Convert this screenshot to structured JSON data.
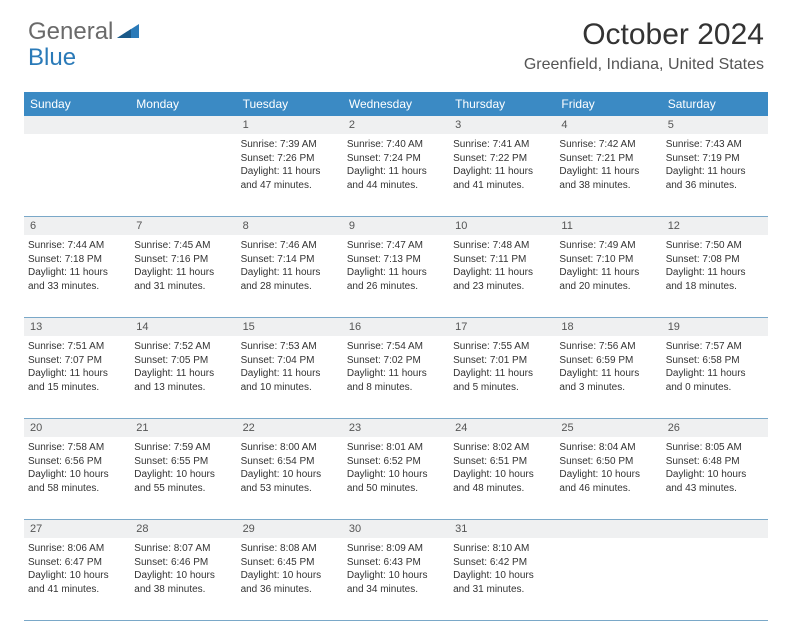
{
  "logo": {
    "word1": "General",
    "word2": "Blue"
  },
  "header": {
    "month_title": "October 2024",
    "location": "Greenfield, Indiana, United States"
  },
  "colors": {
    "header_bg": "#3b8ac4",
    "daynum_bg": "#eff0f1",
    "week_border": "#7aa8c8",
    "logo_gray": "#6a6a6a",
    "logo_blue": "#2a7ab8"
  },
  "day_names": [
    "Sunday",
    "Monday",
    "Tuesday",
    "Wednesday",
    "Thursday",
    "Friday",
    "Saturday"
  ],
  "weeks": [
    {
      "nums": [
        "",
        "",
        "1",
        "2",
        "3",
        "4",
        "5"
      ],
      "cells": [
        {
          "sunrise": "",
          "sunset": "",
          "daylight": ""
        },
        {
          "sunrise": "",
          "sunset": "",
          "daylight": ""
        },
        {
          "sunrise": "Sunrise: 7:39 AM",
          "sunset": "Sunset: 7:26 PM",
          "daylight": "Daylight: 11 hours and 47 minutes."
        },
        {
          "sunrise": "Sunrise: 7:40 AM",
          "sunset": "Sunset: 7:24 PM",
          "daylight": "Daylight: 11 hours and 44 minutes."
        },
        {
          "sunrise": "Sunrise: 7:41 AM",
          "sunset": "Sunset: 7:22 PM",
          "daylight": "Daylight: 11 hours and 41 minutes."
        },
        {
          "sunrise": "Sunrise: 7:42 AM",
          "sunset": "Sunset: 7:21 PM",
          "daylight": "Daylight: 11 hours and 38 minutes."
        },
        {
          "sunrise": "Sunrise: 7:43 AM",
          "sunset": "Sunset: 7:19 PM",
          "daylight": "Daylight: 11 hours and 36 minutes."
        }
      ]
    },
    {
      "nums": [
        "6",
        "7",
        "8",
        "9",
        "10",
        "11",
        "12"
      ],
      "cells": [
        {
          "sunrise": "Sunrise: 7:44 AM",
          "sunset": "Sunset: 7:18 PM",
          "daylight": "Daylight: 11 hours and 33 minutes."
        },
        {
          "sunrise": "Sunrise: 7:45 AM",
          "sunset": "Sunset: 7:16 PM",
          "daylight": "Daylight: 11 hours and 31 minutes."
        },
        {
          "sunrise": "Sunrise: 7:46 AM",
          "sunset": "Sunset: 7:14 PM",
          "daylight": "Daylight: 11 hours and 28 minutes."
        },
        {
          "sunrise": "Sunrise: 7:47 AM",
          "sunset": "Sunset: 7:13 PM",
          "daylight": "Daylight: 11 hours and 26 minutes."
        },
        {
          "sunrise": "Sunrise: 7:48 AM",
          "sunset": "Sunset: 7:11 PM",
          "daylight": "Daylight: 11 hours and 23 minutes."
        },
        {
          "sunrise": "Sunrise: 7:49 AM",
          "sunset": "Sunset: 7:10 PM",
          "daylight": "Daylight: 11 hours and 20 minutes."
        },
        {
          "sunrise": "Sunrise: 7:50 AM",
          "sunset": "Sunset: 7:08 PM",
          "daylight": "Daylight: 11 hours and 18 minutes."
        }
      ]
    },
    {
      "nums": [
        "13",
        "14",
        "15",
        "16",
        "17",
        "18",
        "19"
      ],
      "cells": [
        {
          "sunrise": "Sunrise: 7:51 AM",
          "sunset": "Sunset: 7:07 PM",
          "daylight": "Daylight: 11 hours and 15 minutes."
        },
        {
          "sunrise": "Sunrise: 7:52 AM",
          "sunset": "Sunset: 7:05 PM",
          "daylight": "Daylight: 11 hours and 13 minutes."
        },
        {
          "sunrise": "Sunrise: 7:53 AM",
          "sunset": "Sunset: 7:04 PM",
          "daylight": "Daylight: 11 hours and 10 minutes."
        },
        {
          "sunrise": "Sunrise: 7:54 AM",
          "sunset": "Sunset: 7:02 PM",
          "daylight": "Daylight: 11 hours and 8 minutes."
        },
        {
          "sunrise": "Sunrise: 7:55 AM",
          "sunset": "Sunset: 7:01 PM",
          "daylight": "Daylight: 11 hours and 5 minutes."
        },
        {
          "sunrise": "Sunrise: 7:56 AM",
          "sunset": "Sunset: 6:59 PM",
          "daylight": "Daylight: 11 hours and 3 minutes."
        },
        {
          "sunrise": "Sunrise: 7:57 AM",
          "sunset": "Sunset: 6:58 PM",
          "daylight": "Daylight: 11 hours and 0 minutes."
        }
      ]
    },
    {
      "nums": [
        "20",
        "21",
        "22",
        "23",
        "24",
        "25",
        "26"
      ],
      "cells": [
        {
          "sunrise": "Sunrise: 7:58 AM",
          "sunset": "Sunset: 6:56 PM",
          "daylight": "Daylight: 10 hours and 58 minutes."
        },
        {
          "sunrise": "Sunrise: 7:59 AM",
          "sunset": "Sunset: 6:55 PM",
          "daylight": "Daylight: 10 hours and 55 minutes."
        },
        {
          "sunrise": "Sunrise: 8:00 AM",
          "sunset": "Sunset: 6:54 PM",
          "daylight": "Daylight: 10 hours and 53 minutes."
        },
        {
          "sunrise": "Sunrise: 8:01 AM",
          "sunset": "Sunset: 6:52 PM",
          "daylight": "Daylight: 10 hours and 50 minutes."
        },
        {
          "sunrise": "Sunrise: 8:02 AM",
          "sunset": "Sunset: 6:51 PM",
          "daylight": "Daylight: 10 hours and 48 minutes."
        },
        {
          "sunrise": "Sunrise: 8:04 AM",
          "sunset": "Sunset: 6:50 PM",
          "daylight": "Daylight: 10 hours and 46 minutes."
        },
        {
          "sunrise": "Sunrise: 8:05 AM",
          "sunset": "Sunset: 6:48 PM",
          "daylight": "Daylight: 10 hours and 43 minutes."
        }
      ]
    },
    {
      "nums": [
        "27",
        "28",
        "29",
        "30",
        "31",
        "",
        ""
      ],
      "cells": [
        {
          "sunrise": "Sunrise: 8:06 AM",
          "sunset": "Sunset: 6:47 PM",
          "daylight": "Daylight: 10 hours and 41 minutes."
        },
        {
          "sunrise": "Sunrise: 8:07 AM",
          "sunset": "Sunset: 6:46 PM",
          "daylight": "Daylight: 10 hours and 38 minutes."
        },
        {
          "sunrise": "Sunrise: 8:08 AM",
          "sunset": "Sunset: 6:45 PM",
          "daylight": "Daylight: 10 hours and 36 minutes."
        },
        {
          "sunrise": "Sunrise: 8:09 AM",
          "sunset": "Sunset: 6:43 PM",
          "daylight": "Daylight: 10 hours and 34 minutes."
        },
        {
          "sunrise": "Sunrise: 8:10 AM",
          "sunset": "Sunset: 6:42 PM",
          "daylight": "Daylight: 10 hours and 31 minutes."
        },
        {
          "sunrise": "",
          "sunset": "",
          "daylight": ""
        },
        {
          "sunrise": "",
          "sunset": "",
          "daylight": ""
        }
      ]
    }
  ]
}
